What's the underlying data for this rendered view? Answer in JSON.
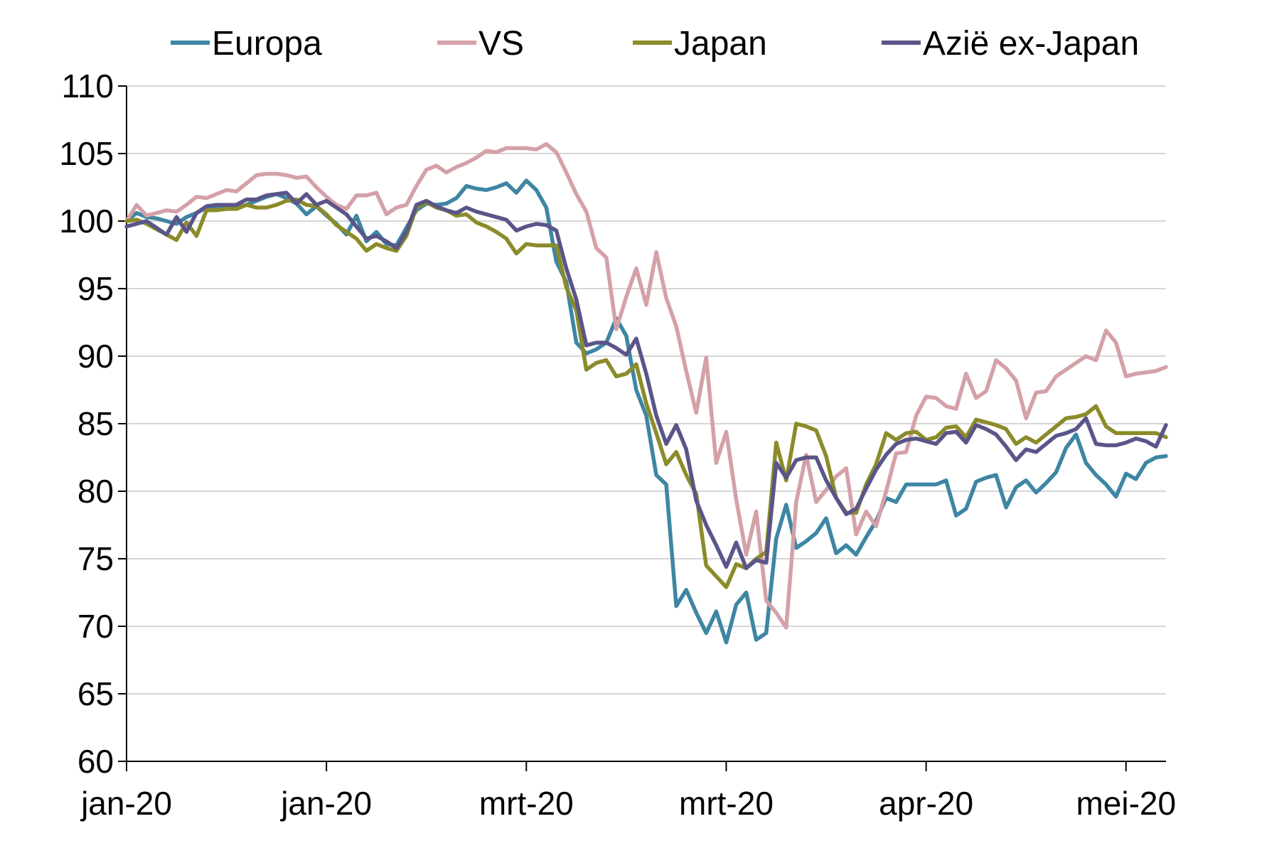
{
  "chart_data": {
    "type": "line",
    "title": "",
    "xlabel": "",
    "ylabel": "",
    "ylim": [
      60,
      110
    ],
    "yticks": [
      60,
      65,
      70,
      75,
      80,
      85,
      90,
      95,
      100,
      105,
      110
    ],
    "xticks": [
      {
        "index": 0,
        "label": "jan-20"
      },
      {
        "index": 20,
        "label": "jan-20"
      },
      {
        "index": 40,
        "label": "mrt-20"
      },
      {
        "index": 60,
        "label": "mrt-20"
      },
      {
        "index": 80,
        "label": "apr-20"
      },
      {
        "index": 100,
        "label": "mei-20"
      }
    ],
    "n_points": 105,
    "grid": "horizontal",
    "legend_position": "top",
    "series": [
      {
        "name": "Europa",
        "color": "#3E86A3",
        "values": [
          100.0,
          100.6,
          100.3,
          100.2,
          100.0,
          99.8,
          100.3,
          100.6,
          101.0,
          101.1,
          101.0,
          101.0,
          101.2,
          101.5,
          101.8,
          102.0,
          101.7,
          101.3,
          100.5,
          101.1,
          100.4,
          99.8,
          99.0,
          100.4,
          98.5,
          99.2,
          98.3,
          98.2,
          99.5,
          100.8,
          101.3,
          101.2,
          101.3,
          101.7,
          102.6,
          102.4,
          102.3,
          102.5,
          102.8,
          102.1,
          103.0,
          102.3,
          101.0,
          97.0,
          95.5,
          91.0,
          90.2,
          90.5,
          91.0,
          92.8,
          91.5,
          87.5,
          85.6,
          81.2,
          80.5,
          71.5,
          72.7,
          71.0,
          69.5,
          71.1,
          68.8,
          71.6,
          72.5,
          69.0,
          69.5,
          76.5,
          79.0,
          75.8,
          76.3,
          76.9,
          78.0,
          75.4,
          76.0,
          75.3,
          76.6,
          77.8,
          79.5,
          79.2,
          80.5,
          80.5,
          80.5,
          80.5,
          80.8,
          78.2,
          78.7,
          80.7,
          81.0,
          81.2,
          78.8,
          80.3,
          80.8,
          79.9,
          80.6,
          81.4,
          83.2,
          84.2,
          82.1,
          81.2,
          80.5,
          79.6,
          81.3,
          80.9,
          82.1,
          82.5,
          82.6
        ]
      },
      {
        "name": "VS",
        "color": "#D4A1A8",
        "values": [
          100.0,
          101.2,
          100.4,
          100.6,
          100.8,
          100.7,
          101.2,
          101.8,
          101.7,
          102.0,
          102.3,
          102.2,
          102.8,
          103.4,
          103.5,
          103.5,
          103.4,
          103.2,
          103.3,
          102.5,
          101.8,
          101.2,
          100.9,
          101.9,
          101.9,
          102.1,
          100.5,
          101.0,
          101.2,
          102.6,
          103.8,
          104.1,
          103.6,
          104.0,
          104.3,
          104.7,
          105.2,
          105.1,
          105.4,
          105.4,
          105.4,
          105.3,
          105.7,
          105.1,
          103.6,
          102.0,
          100.7,
          98.0,
          97.3,
          92.0,
          94.4,
          96.5,
          93.8,
          97.7,
          94.3,
          92.2,
          88.9,
          85.8,
          89.9,
          82.1,
          84.4,
          79.4,
          75.3,
          78.5,
          71.9,
          71.0,
          69.9,
          79.2,
          82.7,
          79.2,
          80.1,
          81.1,
          81.7,
          76.8,
          78.5,
          77.4,
          80.0,
          82.8,
          82.9,
          85.6,
          87.0,
          86.9,
          86.3,
          86.1,
          88.7,
          86.9,
          87.4,
          89.7,
          89.1,
          88.2,
          85.4,
          87.3,
          87.4,
          88.5,
          89.0,
          89.5,
          90.0,
          89.7,
          91.9,
          91.0,
          88.5,
          88.7,
          88.8,
          88.9,
          89.2
        ]
      },
      {
        "name": "Japan",
        "color": "#8B8B2A",
        "values": [
          100.0,
          100.1,
          99.8,
          99.4,
          99.0,
          98.6,
          99.9,
          98.9,
          100.8,
          100.8,
          100.9,
          100.9,
          101.2,
          101.0,
          101.0,
          101.2,
          101.5,
          101.6,
          101.2,
          101.1,
          100.5,
          99.7,
          99.2,
          98.7,
          97.8,
          98.3,
          98.0,
          97.8,
          98.9,
          101.0,
          101.4,
          101.0,
          100.8,
          100.4,
          100.5,
          99.9,
          99.6,
          99.2,
          98.7,
          97.6,
          98.3,
          98.2,
          98.2,
          98.2,
          95.1,
          93.4,
          89.0,
          89.5,
          89.7,
          88.5,
          88.7,
          89.4,
          86.5,
          84.3,
          82.0,
          82.9,
          81.2,
          79.8,
          74.5,
          73.7,
          72.9,
          74.6,
          74.3,
          75.0,
          75.5,
          83.6,
          80.8,
          85.0,
          84.8,
          84.5,
          82.6,
          79.5,
          78.4,
          78.4,
          80.5,
          82.0,
          84.3,
          83.8,
          84.3,
          84.4,
          83.8,
          84.0,
          84.7,
          84.8,
          84.0,
          85.3,
          85.1,
          84.9,
          84.6,
          83.5,
          84.0,
          83.6,
          84.2,
          84.8,
          85.4,
          85.5,
          85.7,
          86.3,
          84.8,
          84.3,
          84.3,
          84.3,
          84.3,
          84.3,
          84.0
        ]
      },
      {
        "name": "Azië ex-Japan",
        "color": "#5A5589",
        "values": [
          99.6,
          99.8,
          100.0,
          99.5,
          99.0,
          100.3,
          99.2,
          100.6,
          101.1,
          101.2,
          101.2,
          101.2,
          101.6,
          101.6,
          101.9,
          102.0,
          102.1,
          101.3,
          102.0,
          101.2,
          101.5,
          101.0,
          100.5,
          99.6,
          98.7,
          98.9,
          98.5,
          98.0,
          99.2,
          101.2,
          101.5,
          101.1,
          100.8,
          100.6,
          101.0,
          100.7,
          100.5,
          100.3,
          100.1,
          99.3,
          99.6,
          99.8,
          99.7,
          99.3,
          96.5,
          94.2,
          90.8,
          91.0,
          91.0,
          90.6,
          90.1,
          91.3,
          88.7,
          85.6,
          83.5,
          84.9,
          83.1,
          79.3,
          77.5,
          76.0,
          74.4,
          76.2,
          74.3,
          74.9,
          74.7,
          82.1,
          81.0,
          82.3,
          82.5,
          82.5,
          80.8,
          79.5,
          78.3,
          78.7,
          80.2,
          81.6,
          82.7,
          83.5,
          83.8,
          83.9,
          83.7,
          83.5,
          84.3,
          84.4,
          83.6,
          84.9,
          84.6,
          84.2,
          83.3,
          82.3,
          83.1,
          82.9,
          83.5,
          84.1,
          84.3,
          84.6,
          85.4,
          83.5,
          83.4,
          83.4,
          83.6,
          83.9,
          83.7,
          83.3,
          84.9
        ]
      }
    ]
  }
}
